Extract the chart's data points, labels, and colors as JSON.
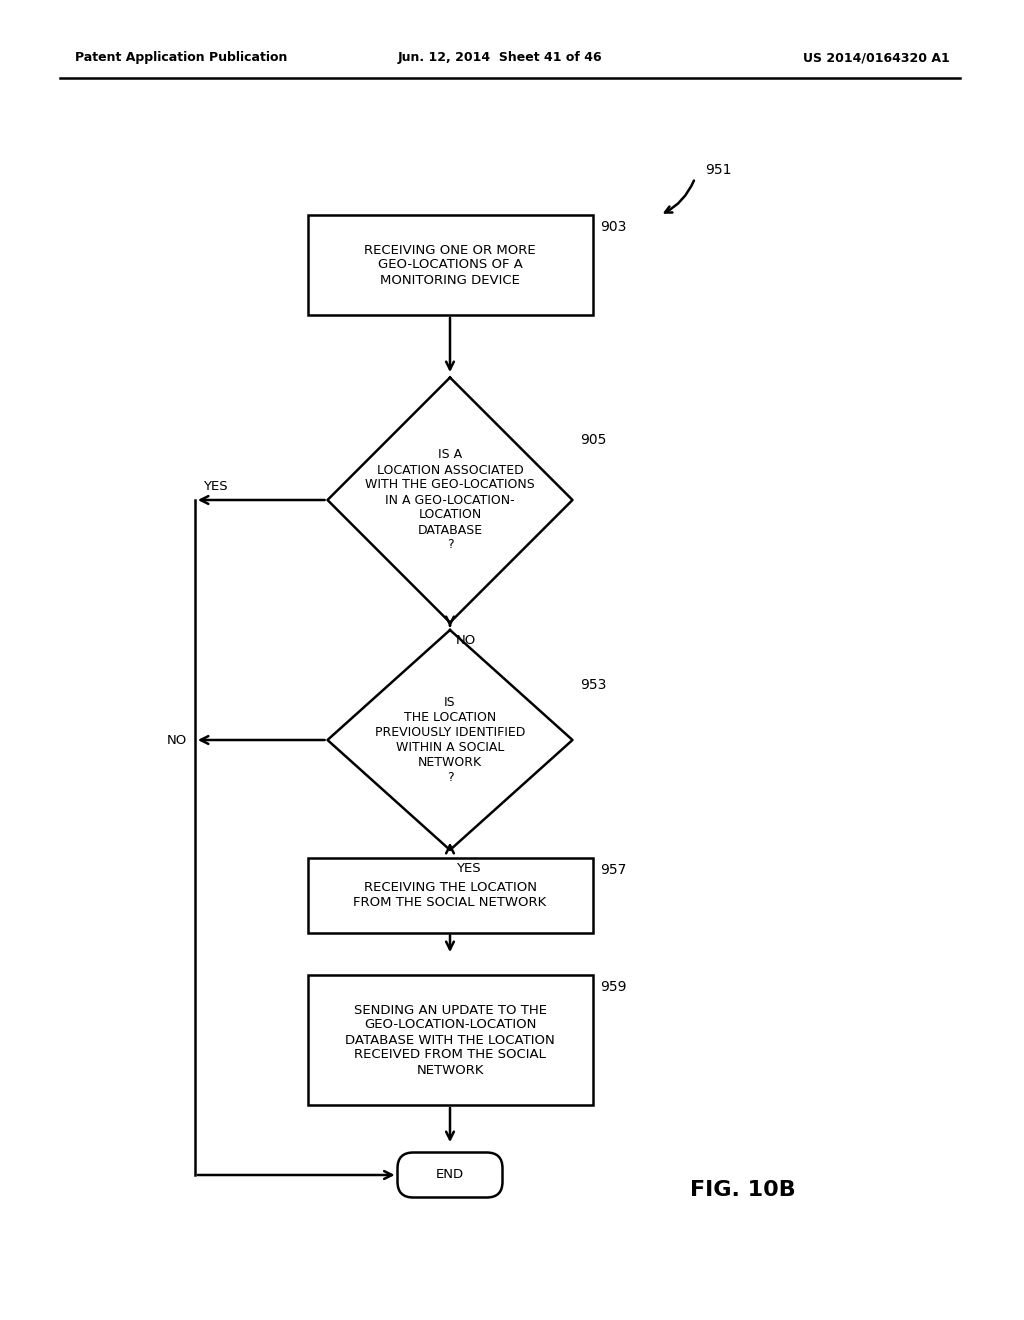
{
  "header_left": "Patent Application Publication",
  "header_mid": "Jun. 12, 2014  Sheet 41 of 46",
  "header_right": "US 2014/0164320 A1",
  "fig_label": "FIG. 10B",
  "background_color": "#ffffff",
  "box_903_text": "RECEIVING ONE OR MORE\nGEO-LOCATIONS OF A\nMONITORING DEVICE",
  "box_905_text": "IS A\nLOCATION ASSOCIATED\nWITH THE GEO-LOCATIONS\nIN A GEO-LOCATION-\nLOCATION\nDATABASE\n?",
  "box_953_text": "IS\nTHE LOCATION\nPREVIOUSLY IDENTIFIED\nWITHIN A SOCIAL\nNETWORK\n?",
  "box_957_text": "RECEIVING THE LOCATION\nFROM THE SOCIAL NETWORK",
  "box_959_text": "SENDING AN UPDATE TO THE\nGEO-LOCATION-LOCATION\nDATABASE WITH THE LOCATION\nRECEIVED FROM THE SOCIAL\nNETWORK",
  "box_end_text": "END",
  "label_951": "951",
  "label_903": "903",
  "label_905": "905",
  "label_953": "953",
  "label_957": "957",
  "label_959": "959",
  "yes_label": "YES",
  "no_label": "NO"
}
